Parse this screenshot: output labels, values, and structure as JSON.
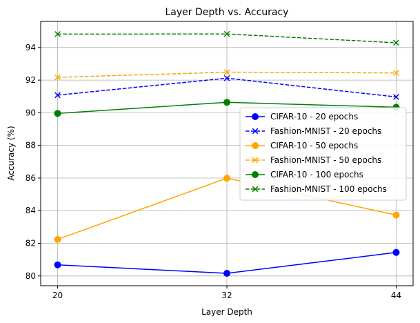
{
  "chart_data": {
    "type": "line",
    "title": "Layer Depth vs. Accuracy",
    "xlabel": "Layer Depth",
    "ylabel": "Accuracy (%)",
    "x": [
      20,
      32,
      44
    ],
    "x_tick_labels": [
      "20",
      "32",
      "44"
    ],
    "y_ticks": [
      80,
      82,
      84,
      86,
      88,
      90,
      92,
      94
    ],
    "y_tick_labels": [
      "80",
      "82",
      "84",
      "86",
      "88",
      "90",
      "92",
      "94"
    ],
    "xlim": [
      18.8,
      45.2
    ],
    "ylim": [
      79.4,
      95.6
    ],
    "grid": true,
    "legend_position": "center-right",
    "series": [
      {
        "name": "CIFAR-10 - 20 epochs",
        "values": [
          80.68,
          80.16,
          81.44
        ],
        "color": "#0000ff",
        "linestyle": "solid",
        "marker": "circle"
      },
      {
        "name": "Fashion-MNIST - 20 epochs",
        "values": [
          91.08,
          92.12,
          90.97
        ],
        "color": "#0000ff",
        "linestyle": "dashed",
        "marker": "x"
      },
      {
        "name": "CIFAR-10 - 50 epochs",
        "values": [
          82.24,
          85.99,
          83.73
        ],
        "color": "#ffa500",
        "linestyle": "solid",
        "marker": "circle"
      },
      {
        "name": "Fashion-MNIST - 50 epochs",
        "values": [
          92.17,
          92.49,
          92.44
        ],
        "color": "#ffa500",
        "linestyle": "dashed",
        "marker": "x"
      },
      {
        "name": "CIFAR-10 - 100 epochs",
        "values": [
          89.96,
          90.64,
          90.34
        ],
        "color": "#008000",
        "linestyle": "solid",
        "marker": "circle"
      },
      {
        "name": "Fashion-MNIST - 100 epochs",
        "values": [
          94.82,
          94.83,
          94.29
        ],
        "color": "#008000",
        "linestyle": "dashed",
        "marker": "x"
      }
    ]
  }
}
